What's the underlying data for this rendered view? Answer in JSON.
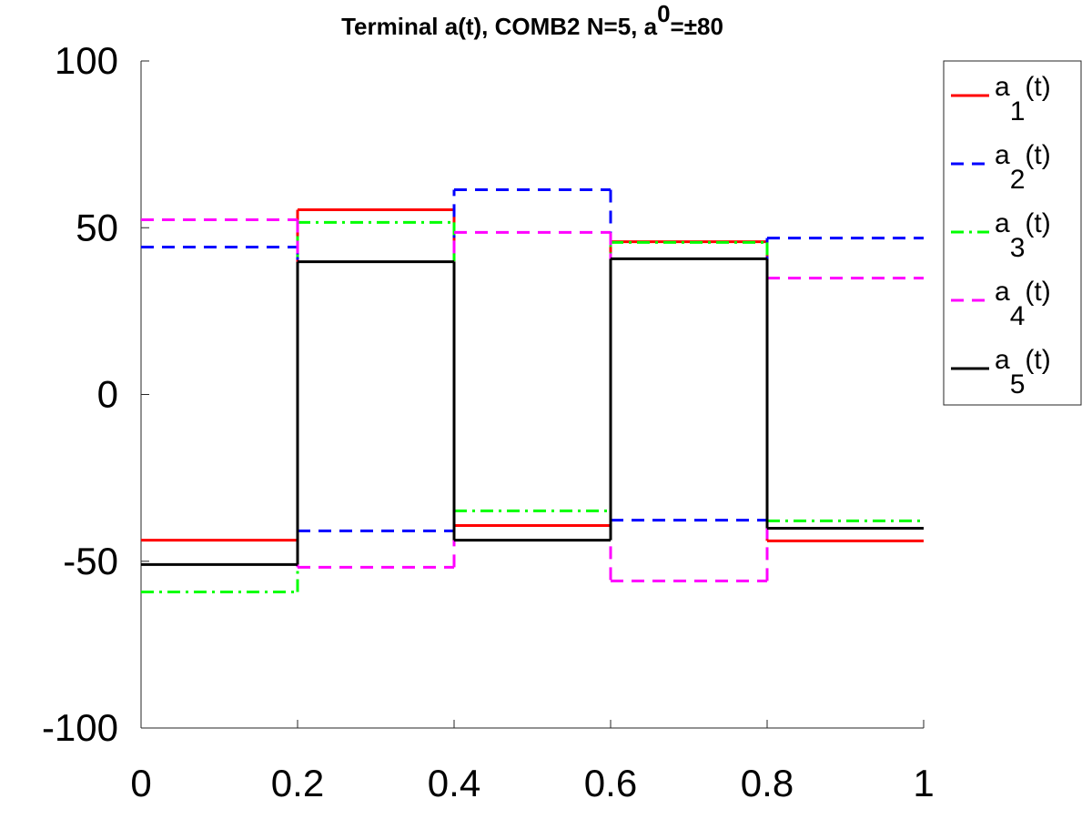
{
  "chart_data": {
    "type": "step",
    "title": "Terminal a(t), COMB2 N=5, a0=±80",
    "x": [
      0,
      0.2,
      0.4,
      0.6,
      0.8
    ],
    "xlim": [
      0,
      1
    ],
    "xticks": [
      0,
      0.2,
      0.4,
      0.6,
      0.8,
      1
    ],
    "ylim": [
      -100,
      100
    ],
    "yticks": [
      -100,
      -50,
      0,
      50,
      100
    ],
    "legend": "outside-right",
    "series": [
      {
        "name": "a1(t)",
        "color": "#ff0000",
        "style": "solid",
        "values": [
          -43.7,
          55.4,
          -39.3,
          45.8,
          -43.9
        ]
      },
      {
        "name": "a2(t)",
        "color": "#0000ff",
        "style": "dashed",
        "values": [
          44.2,
          -40.9,
          61.4,
          -37.7,
          46.9
        ]
      },
      {
        "name": "a3(t)",
        "color": "#00ff00",
        "style": "dashdot",
        "values": [
          -59.2,
          51.6,
          -34.9,
          45.6,
          -37.9
        ]
      },
      {
        "name": "a4(t)",
        "color": "#ff00ff",
        "style": "dashed",
        "values": [
          52.4,
          -51.8,
          48.6,
          -55.9,
          34.9
        ]
      },
      {
        "name": "a5(t)",
        "color": "#000000",
        "style": "solid",
        "values": [
          -51,
          39.8,
          -43.7,
          40.7,
          -40.1
        ]
      }
    ]
  }
}
